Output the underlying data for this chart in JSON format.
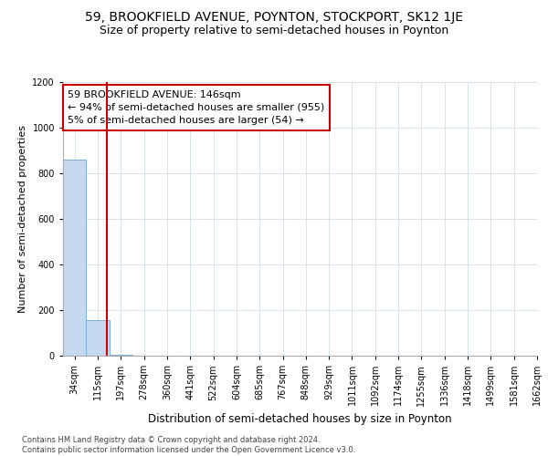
{
  "title": "59, BROOKFIELD AVENUE, POYNTON, STOCKPORT, SK12 1JE",
  "subtitle": "Size of property relative to semi-detached houses in Poynton",
  "xlabel": "Distribution of semi-detached houses by size in Poynton",
  "ylabel": "Number of semi-detached properties",
  "bar_heights": [
    860,
    155,
    5,
    0,
    0,
    0,
    0,
    0,
    0,
    0,
    0,
    0,
    0,
    0,
    0,
    0,
    0,
    0,
    0,
    0
  ],
  "bar_color": "#c5d9f0",
  "bar_edge_color": "#7ab0d8",
  "property_bar_index": 1,
  "property_line_color": "#cc0000",
  "annotation_text": "59 BROOKFIELD AVENUE: 146sqm\n← 94% of semi-detached houses are smaller (955)\n5% of semi-detached houses are larger (54) →",
  "annotation_box_color": "#cc0000",
  "ylim": [
    0,
    1200
  ],
  "yticks": [
    0,
    200,
    400,
    600,
    800,
    1000,
    1200
  ],
  "xtick_labels": [
    "34sqm",
    "115sqm",
    "197sqm",
    "278sqm",
    "360sqm",
    "441sqm",
    "522sqm",
    "604sqm",
    "685sqm",
    "767sqm",
    "848sqm",
    "929sqm",
    "1011sqm",
    "1092sqm",
    "1174sqm",
    "1255sqm",
    "1336sqm",
    "1418sqm",
    "1499sqm",
    "1581sqm",
    "1662sqm"
  ],
  "grid_color": "#c8d8e8",
  "background_color": "#ffffff",
  "footer_text": "Contains HM Land Registry data © Crown copyright and database right 2024.\nContains public sector information licensed under the Open Government Licence v3.0.",
  "title_fontsize": 10,
  "subtitle_fontsize": 9,
  "tick_fontsize": 7,
  "ylabel_fontsize": 8,
  "xlabel_fontsize": 8.5,
  "annotation_fontsize": 8,
  "footer_fontsize": 6
}
